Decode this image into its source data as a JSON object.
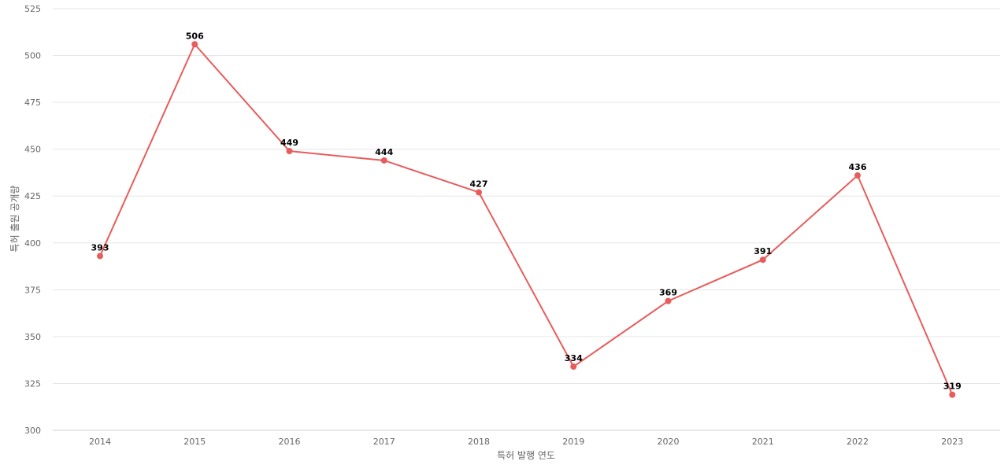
{
  "chart_data": {
    "type": "line",
    "title": "",
    "xlabel": "특허 발행 연도",
    "ylabel": "특허 출원 공개량",
    "categories": [
      "2014",
      "2015",
      "2016",
      "2017",
      "2018",
      "2019",
      "2020",
      "2021",
      "2022",
      "2023"
    ],
    "series": [
      {
        "values": [
          393,
          506,
          449,
          444,
          427,
          334,
          369,
          391,
          436,
          319
        ]
      }
    ],
    "ylim": [
      300,
      525
    ],
    "yticks": [
      300,
      325,
      350,
      375,
      400,
      425,
      450,
      475,
      500,
      525
    ],
    "grid": true,
    "data_labels": true,
    "colors": {
      "series": "#e85c5c",
      "grid": "#e6e6e6"
    }
  }
}
